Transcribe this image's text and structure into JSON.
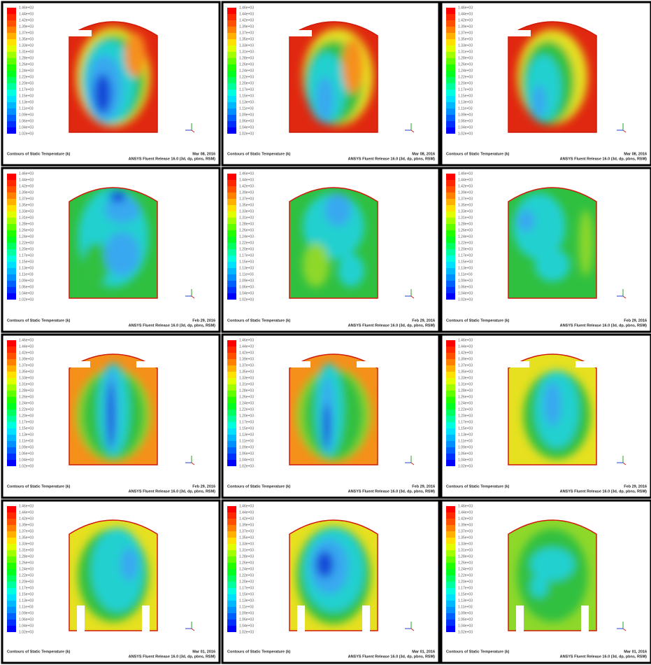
{
  "colorbar": {
    "labels": [
      "1.46e+03",
      "1.44e+03",
      "1.42e+03",
      "1.39e+03",
      "1.37e+03",
      "1.35e+03",
      "1.33e+03",
      "1.31e+03",
      "1.28e+03",
      "1.26e+03",
      "1.24e+03",
      "1.22e+03",
      "1.20e+03",
      "1.17e+03",
      "1.15e+03",
      "1.13e+03",
      "1.11e+03",
      "1.09e+03",
      "1.06e+03",
      "1.04e+03",
      "1.02e+03"
    ]
  },
  "panels": [
    {
      "caption": "Contours of Static Temperature (k)",
      "date": "Mar 08, 2016",
      "release": "ANSYS Fluent Release 16.0 (3d, dp, pbns, RSM)"
    },
    {
      "caption": "Contours of Static Temperature (k)",
      "date": "Mar 08, 2016",
      "release": "ANSYS Fluent Release 16.0 (3d, dp, pbns, RSM)"
    },
    {
      "caption": "Contours of Static Temperature (k)",
      "date": "Mar 08, 2016",
      "release": "ANSYS Fluent Release 16.0 (3d, dp, pbns, RSM)"
    },
    {
      "caption": "Contours of Static Temperature (k)",
      "date": "Feb 29, 2016",
      "release": "ANSYS Fluent Release 16.0 (3d, dp, pbns, RSM)"
    },
    {
      "caption": "Contours of Static Temperature (k)",
      "date": "Feb 29, 2016",
      "release": "ANSYS Fluent Release 16.0 (3d, dp, pbns, RSM)"
    },
    {
      "caption": "Contours of Static Temperature (k)",
      "date": "Feb 29, 2016",
      "release": "ANSYS Fluent Release 16.0 (3d, dp, pbns, RSM)"
    },
    {
      "caption": "Contours of Static Temperature (k)",
      "date": "Feb 29, 2016",
      "release": "ANSYS Fluent Release 16.0 (3d, dp, pbns, RSM)"
    },
    {
      "caption": "Contours of Static Temperature (k)",
      "date": "Feb 29, 2016",
      "release": "ANSYS Fluent Release 16.0 (3d, dp, pbns, RSM)"
    },
    {
      "caption": "Contours of Static Temperature (k)",
      "date": "Feb 29, 2016",
      "release": "ANSYS Fluent Release 16.0 (3d, dp, pbns, RSM)"
    },
    {
      "caption": "Contours of Static Temperature (k)",
      "date": "Mar 01, 2016",
      "release": "ANSYS Fluent Release 16.0 (3d, dp, pbns, RSM)"
    },
    {
      "caption": "Contours of Static Temperature (k)",
      "date": "Mar 01, 2016",
      "release": "ANSYS Fluent Release 16.0 (3d, dp, pbns, RSM)"
    },
    {
      "caption": "Contours of Static Temperature (k)",
      "date": "Mar 01, 2016",
      "release": "ANSYS Fluent Release 16.0 (3d, dp, pbns, RSM)"
    }
  ]
}
